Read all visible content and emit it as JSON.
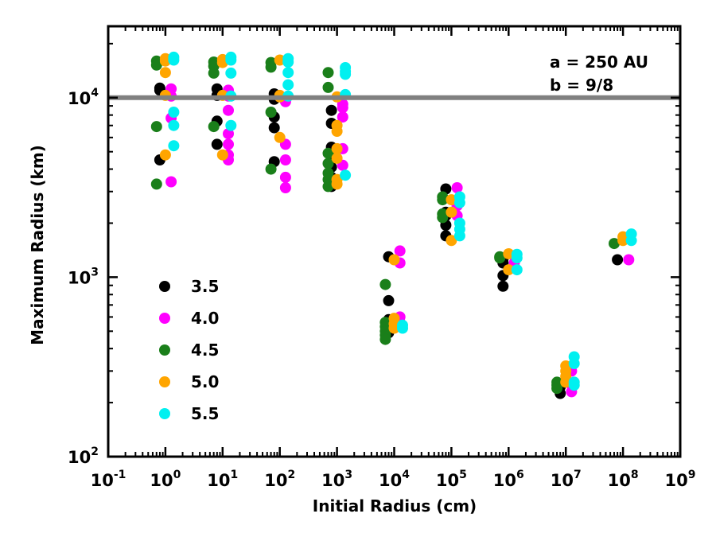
{
  "chart_data": {
    "type": "scatter",
    "xlabel": "Initial Radius (cm)",
    "ylabel": "Maximum Radius (km)",
    "x_scale": "log",
    "y_scale": "log",
    "xlim": [
      0.1,
      1000000000
    ],
    "ylim": [
      100,
      25000
    ],
    "x_ticks": [
      {
        "base": "10",
        "exp": "-1"
      },
      {
        "base": "10",
        "exp": "0"
      },
      {
        "base": "10",
        "exp": "1"
      },
      {
        "base": "10",
        "exp": "2"
      },
      {
        "base": "10",
        "exp": "3"
      },
      {
        "base": "10",
        "exp": "4"
      },
      {
        "base": "10",
        "exp": "5"
      },
      {
        "base": "10",
        "exp": "6"
      },
      {
        "base": "10",
        "exp": "7"
      },
      {
        "base": "10",
        "exp": "8"
      },
      {
        "base": "10",
        "exp": "9"
      }
    ],
    "y_ticks": [
      {
        "base": "10",
        "exp": "2"
      },
      {
        "base": "10",
        "exp": "3"
      },
      {
        "base": "10",
        "exp": "4"
      }
    ],
    "annotations": [
      "a = 250 AU",
      "b = 9/8"
    ],
    "reference_line": {
      "y": 10000,
      "color": "#808080"
    },
    "legend_position": "lower-left",
    "grid": false,
    "series": [
      {
        "name": "3.5",
        "color": "#000000",
        "points": [
          [
            0.8,
            11000
          ],
          [
            0.8,
            11300
          ],
          [
            0.8,
            4500
          ],
          [
            8,
            11200
          ],
          [
            8,
            10300
          ],
          [
            8,
            7400
          ],
          [
            8,
            5500
          ],
          [
            80,
            10500
          ],
          [
            80,
            9800
          ],
          [
            80,
            7800
          ],
          [
            80,
            6800
          ],
          [
            80,
            4400
          ],
          [
            800,
            8500
          ],
          [
            800,
            7200
          ],
          [
            800,
            5300
          ],
          [
            800,
            4600
          ],
          [
            800,
            4100
          ],
          [
            800,
            3600
          ],
          [
            800,
            3200
          ],
          [
            8000,
            1300
          ],
          [
            8000,
            740
          ],
          [
            8000,
            580
          ],
          [
            8000,
            550
          ],
          [
            8000,
            520
          ],
          [
            8000,
            490
          ],
          [
            80000,
            3100
          ],
          [
            80000,
            2300
          ],
          [
            80000,
            2200
          ],
          [
            80000,
            1950
          ],
          [
            80000,
            1700
          ],
          [
            800000,
            1260
          ],
          [
            800000,
            1200
          ],
          [
            800000,
            1020
          ],
          [
            800000,
            890
          ],
          [
            8000000,
            255
          ],
          [
            8000000,
            245
          ],
          [
            8000000,
            225
          ],
          [
            80000000,
            1250
          ]
        ]
      },
      {
        "name": "4.0",
        "color": "#ff00ff",
        "points": [
          [
            1.26,
            11200
          ],
          [
            1.26,
            10200
          ],
          [
            1.26,
            7700
          ],
          [
            1.26,
            3400
          ],
          [
            12.6,
            11000
          ],
          [
            12.6,
            10200
          ],
          [
            12.6,
            8500
          ],
          [
            12.6,
            6300
          ],
          [
            12.6,
            5500
          ],
          [
            12.6,
            4800
          ],
          [
            12.6,
            4500
          ],
          [
            126,
            10000
          ],
          [
            126,
            9500
          ],
          [
            126,
            5500
          ],
          [
            126,
            4500
          ],
          [
            126,
            3600
          ],
          [
            126,
            3150
          ],
          [
            1260,
            9200
          ],
          [
            1260,
            8800
          ],
          [
            1260,
            7800
          ],
          [
            1260,
            5200
          ],
          [
            1260,
            4200
          ],
          [
            12600,
            1400
          ],
          [
            12600,
            1200
          ],
          [
            12600,
            600
          ],
          [
            12600,
            560
          ],
          [
            126000,
            3150
          ],
          [
            126000,
            2500
          ],
          [
            126000,
            2200
          ],
          [
            1260000,
            1320
          ],
          [
            1260000,
            1200
          ],
          [
            12600000,
            300
          ],
          [
            12600000,
            250
          ],
          [
            12600000,
            230
          ],
          [
            126000000,
            1650
          ],
          [
            126000000,
            1250
          ]
        ]
      },
      {
        "name": "4.5",
        "color": "#1a7f1a",
        "points": [
          [
            0.7,
            16000
          ],
          [
            0.7,
            15200
          ],
          [
            0.7,
            6900
          ],
          [
            0.7,
            3300
          ],
          [
            7,
            15800
          ],
          [
            7,
            15000
          ],
          [
            7,
            13700
          ],
          [
            7,
            6900
          ],
          [
            70,
            15700
          ],
          [
            70,
            14800
          ],
          [
            70,
            8300
          ],
          [
            70,
            4000
          ],
          [
            700,
            13800
          ],
          [
            700,
            11400
          ],
          [
            700,
            4900
          ],
          [
            700,
            4300
          ],
          [
            700,
            3800
          ],
          [
            700,
            3500
          ],
          [
            700,
            3200
          ],
          [
            7000,
            910
          ],
          [
            7000,
            560
          ],
          [
            7000,
            530
          ],
          [
            7000,
            500
          ],
          [
            7000,
            475
          ],
          [
            7000,
            450
          ],
          [
            70000,
            2800
          ],
          [
            70000,
            2700
          ],
          [
            70000,
            2250
          ],
          [
            70000,
            2150
          ],
          [
            700000,
            1300
          ],
          [
            700000,
            1280
          ],
          [
            7000000,
            260
          ],
          [
            7000000,
            250
          ],
          [
            7000000,
            240
          ],
          [
            70000000,
            1540
          ]
        ]
      },
      {
        "name": "5.0",
        "color": "#ffa500",
        "points": [
          [
            1,
            16500
          ],
          [
            1,
            16000
          ],
          [
            1,
            13800
          ],
          [
            1,
            10300
          ],
          [
            1,
            4800
          ],
          [
            10,
            16300
          ],
          [
            10,
            15700
          ],
          [
            10,
            10300
          ],
          [
            10,
            4800
          ],
          [
            100,
            16200
          ],
          [
            100,
            10300
          ],
          [
            100,
            10100
          ],
          [
            100,
            6000
          ],
          [
            1000,
            10100
          ],
          [
            1000,
            7000
          ],
          [
            1000,
            6500
          ],
          [
            1000,
            5200
          ],
          [
            1000,
            4600
          ],
          [
            1000,
            3500
          ],
          [
            1000,
            3300
          ],
          [
            10000,
            1250
          ],
          [
            10000,
            590
          ],
          [
            10000,
            550
          ],
          [
            10000,
            520
          ],
          [
            100000,
            2700
          ],
          [
            100000,
            2300
          ],
          [
            100000,
            1600
          ],
          [
            1000000,
            1350
          ],
          [
            1000000,
            1100
          ],
          [
            10000000,
            320
          ],
          [
            10000000,
            300
          ],
          [
            10000000,
            280
          ],
          [
            10000000,
            260
          ],
          [
            100000000,
            1680
          ],
          [
            100000000,
            1600
          ]
        ]
      },
      {
        "name": "5.5",
        "color": "#00f0f0",
        "points": [
          [
            1.4,
            16800
          ],
          [
            1.4,
            16200
          ],
          [
            1.4,
            8300
          ],
          [
            1.4,
            7000
          ],
          [
            1.4,
            5400
          ],
          [
            14,
            16800
          ],
          [
            14,
            16200
          ],
          [
            14,
            13700
          ],
          [
            14,
            10200
          ],
          [
            14,
            7000
          ],
          [
            140,
            16500
          ],
          [
            140,
            15800
          ],
          [
            140,
            13800
          ],
          [
            140,
            11800
          ],
          [
            140,
            10200
          ],
          [
            1400,
            14700
          ],
          [
            1400,
            14000
          ],
          [
            1400,
            13500
          ],
          [
            1400,
            10400
          ],
          [
            1400,
            3700
          ],
          [
            14000,
            540
          ],
          [
            14000,
            520
          ],
          [
            140000,
            2800
          ],
          [
            140000,
            2600
          ],
          [
            140000,
            2000
          ],
          [
            140000,
            1850
          ],
          [
            140000,
            1700
          ],
          [
            1400000,
            1340
          ],
          [
            1400000,
            1280
          ],
          [
            1400000,
            1100
          ],
          [
            14000000,
            360
          ],
          [
            14000000,
            330
          ],
          [
            14000000,
            260
          ],
          [
            14000000,
            250
          ],
          [
            140000000,
            1740
          ],
          [
            140000000,
            1600
          ]
        ]
      }
    ]
  }
}
